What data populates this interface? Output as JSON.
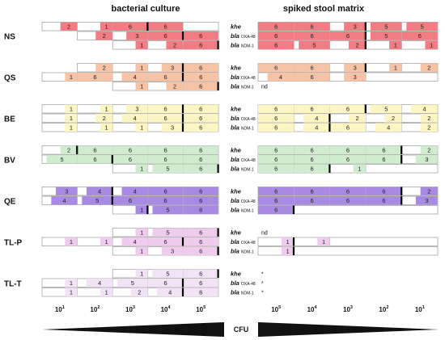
{
  "headers": {
    "left": "bacterial culture",
    "right": "spiked stool matrix"
  },
  "gene_labels": [
    {
      "name": "khe",
      "sub": ""
    },
    {
      "name": "bla",
      "sub": "OXA-48"
    },
    {
      "name": "bla",
      "sub": "NDM-1"
    }
  ],
  "groups": [
    {
      "name": "NS",
      "fill": "#f27c84",
      "left": [
        {
          "shift": 0,
          "counts": [
            "2",
            "1",
            "6",
            "6"
          ],
          "cut": 2
        },
        {
          "shift": 1,
          "counts": [
            "2",
            "3",
            "6",
            "6"
          ],
          "cut": 2
        },
        {
          "shift": 2,
          "counts": [
            "1",
            "2",
            "6"
          ],
          "cut": 2
        }
      ],
      "right": [
        {
          "shift": 0,
          "counts": [
            "6",
            "6",
            "3",
            "5",
            "5"
          ],
          "cut": 2
        },
        {
          "shift": 0,
          "counts": [
            "6",
            "6",
            "6",
            "5",
            "6"
          ],
          "cut": 2
        },
        {
          "shift": 0,
          "counts": [
            "6",
            "5",
            "2",
            "1",
            "1"
          ],
          "cut": 2
        }
      ]
    },
    {
      "name": "QS",
      "fill": "#f7c3a6",
      "left": [
        {
          "shift": 1,
          "counts": [
            "2",
            "1",
            "3",
            "6"
          ],
          "cut": 2
        },
        {
          "shift": 0,
          "counts": [
            "1",
            "6",
            "4",
            "6",
            "6"
          ],
          "cut": 3
        },
        {
          "shift": 2,
          "counts": [
            "1",
            "2",
            "6"
          ],
          "cut": 2
        }
      ],
      "right": [
        {
          "shift": 0,
          "counts": [
            "6",
            "6",
            "3",
            "1",
            "2"
          ],
          "cut": 2
        },
        {
          "shift": 0,
          "counts": [
            "4",
            "6",
            "3",
            "",
            ""
          ],
          "cut": -1
        },
        {
          "shift": 0,
          "counts": [],
          "cut": -1,
          "note": "nd"
        }
      ]
    },
    {
      "name": "BE",
      "fill": "#fbf6c3",
      "left": [
        {
          "shift": 0,
          "counts": [
            "1",
            "1",
            "3",
            "6",
            "6"
          ],
          "cut": 3
        },
        {
          "shift": 0,
          "counts": [
            "1",
            "2",
            "4",
            "6",
            "6"
          ],
          "cut": 3
        },
        {
          "shift": 0,
          "counts": [
            "1",
            "1",
            "1",
            "3",
            "6"
          ],
          "cut": 3
        }
      ],
      "right": [
        {
          "shift": 0,
          "counts": [
            "6",
            "6",
            "6",
            "5",
            "4"
          ],
          "cut": 2
        },
        {
          "shift": 0,
          "counts": [
            "6",
            "4",
            "2",
            "2",
            "2"
          ],
          "cut": 1
        },
        {
          "shift": 0,
          "counts": [
            "6",
            "4",
            "6",
            "4",
            "2"
          ],
          "cut": 1
        }
      ]
    },
    {
      "name": "BV",
      "fill": "#cfeccf",
      "left": [
        {
          "shift": 0,
          "counts": [
            "2",
            "6",
            "6",
            "6",
            "6"
          ],
          "cut": 0
        },
        {
          "shift": 0,
          "counts": [
            "5",
            "6",
            "6",
            "6",
            "6"
          ],
          "cut": 1
        },
        {
          "shift": 2,
          "counts": [
            "1",
            "5",
            "6"
          ],
          "cut": 2
        }
      ],
      "right": [
        {
          "shift": 0,
          "counts": [
            "6",
            "6",
            "6",
            "6",
            "2"
          ],
          "cut": 3
        },
        {
          "shift": 0,
          "counts": [
            "6",
            "6",
            "6",
            "6",
            "3"
          ],
          "cut": 3
        },
        {
          "shift": 0,
          "counts": [
            "6",
            "6",
            "1",
            "",
            ""
          ],
          "cut": 1
        }
      ]
    },
    {
      "name": "QE",
      "fill": "#a98ae3",
      "left": [
        {
          "shift": 0,
          "counts": [
            "3",
            "4",
            "4",
            "6",
            "6"
          ],
          "cut": 1
        },
        {
          "shift": 0,
          "counts": [
            "4",
            "5",
            "6",
            "6",
            "6"
          ],
          "cut": 1
        },
        {
          "shift": 2,
          "counts": [
            "1",
            "5",
            "6"
          ],
          "cut": 0
        }
      ],
      "right": [
        {
          "shift": 0,
          "counts": [
            "6",
            "6",
            "6",
            "6",
            "2"
          ],
          "cut": 3
        },
        {
          "shift": 0,
          "counts": [
            "6",
            "6",
            "6",
            "6",
            "3"
          ],
          "cut": 3
        },
        {
          "shift": 0,
          "counts": [
            "6",
            "",
            "",
            "",
            ""
          ],
          "cut": 0
        }
      ]
    },
    {
      "name": "TL-P",
      "fill": "#efcbee",
      "left": [
        {
          "shift": 2,
          "counts": [
            "1",
            "5",
            "6"
          ],
          "cut": 2
        },
        {
          "shift": 0,
          "counts": [
            "1",
            "1",
            "4",
            "6",
            "6"
          ],
          "cut": 3
        },
        {
          "shift": 2,
          "counts": [
            "1",
            "3",
            "6"
          ],
          "cut": 2
        }
      ],
      "right": [
        {
          "shift": 0,
          "counts": [],
          "cut": -1,
          "note": "nd"
        },
        {
          "shift": 0,
          "counts": [
            "1",
            "1",
            "",
            "",
            ""
          ],
          "cut": 0
        },
        {
          "shift": 0,
          "counts": [
            "1",
            "",
            "",
            "",
            ""
          ],
          "cut": 0
        }
      ]
    },
    {
      "name": "TL-T",
      "fill": "#f1e2f5",
      "left": [
        {
          "shift": 2,
          "counts": [
            "1",
            "5",
            "6"
          ],
          "cut": 2
        },
        {
          "shift": 0,
          "counts": [
            "1",
            "4",
            "5",
            "6",
            "6"
          ],
          "cut": 3
        },
        {
          "shift": 0,
          "counts": [
            "1",
            "1",
            "2",
            "4",
            "6"
          ],
          "cut": 3
        }
      ],
      "right": [
        {
          "shift": 0,
          "counts": [],
          "cut": -1,
          "note": "*"
        },
        {
          "shift": 0,
          "counts": [],
          "cut": -1,
          "note": "*"
        },
        {
          "shift": 0,
          "counts": [],
          "cut": -1,
          "note": "*"
        }
      ]
    }
  ],
  "axis": {
    "left": [
      {
        "base": "10",
        "exp": "1"
      },
      {
        "base": "10",
        "exp": "2"
      },
      {
        "base": "10",
        "exp": "3"
      },
      {
        "base": "10",
        "exp": "4"
      },
      {
        "base": "10",
        "exp": "5"
      }
    ],
    "right": [
      {
        "base": "10",
        "exp": "5"
      },
      {
        "base": "10",
        "exp": "4"
      },
      {
        "base": "10",
        "exp": "3"
      },
      {
        "base": "10",
        "exp": "2"
      },
      {
        "base": "10",
        "exp": "1"
      }
    ],
    "label": "CFU"
  }
}
